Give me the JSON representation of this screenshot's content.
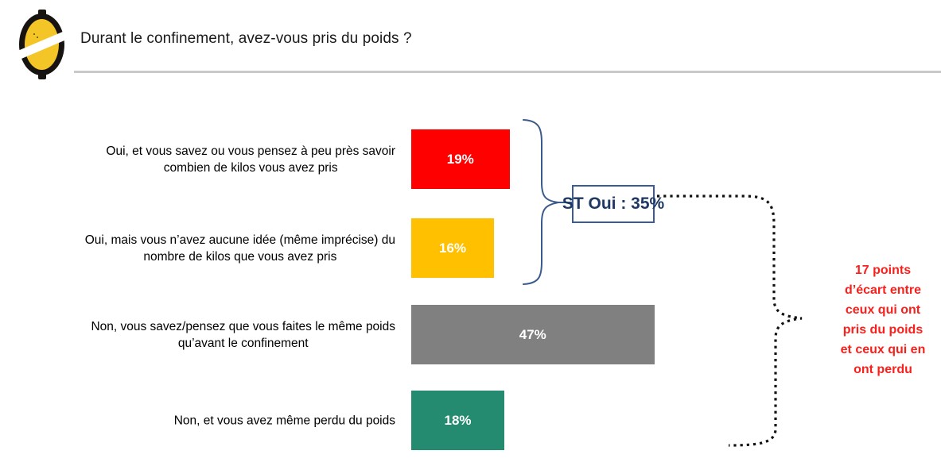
{
  "header": {
    "title": "Durant le confinement, avez-vous pris du poids ?",
    "logo": "lemon-logo"
  },
  "chart_data": {
    "type": "bar",
    "orientation": "horizontal",
    "unit": "percent",
    "title": "Durant le confinement, avez-vous pris du poids ?",
    "xlabel": "",
    "ylabel": "",
    "xlim": [
      0,
      100
    ],
    "grid": false,
    "legend": "none",
    "categories": [
      "Oui, et vous savez ou vous pensez à peu près savoir\ncombien de kilos vous avez pris",
      "Oui, mais vous n’avez aucune idée (même imprécise) du\nnombre de kilos que vous avez pris",
      "Non, vous savez/pensez que vous faites le même poids\nqu’avant le confinement",
      "Non, et vous avez même perdu du poids"
    ],
    "values": [
      19,
      16,
      47,
      18
    ],
    "value_labels": [
      "19%",
      "16%",
      "47%",
      "18%"
    ],
    "bar_colors": [
      "#FF0000",
      "#FFC000",
      "#808080",
      "#258B70"
    ],
    "annotations": {
      "subtotal_box": {
        "label": "ST Oui : 35%",
        "groups_bars": [
          0,
          1
        ],
        "border_color": "#3A5A99",
        "text_color": "#1F3864"
      },
      "gap_note": {
        "text": "17 points d’écart entre ceux qui ont pris du poids et ceux qui en ont perdu",
        "lines": [
          "17 points",
          "d’écart entre",
          "ceux qui ont",
          "pris du poids",
          "et ceux qui en",
          "ont perdu"
        ],
        "color": "#F9201C",
        "connector_style": "black-dotted",
        "connects": "subtotal of bars 1-2 with bar 4"
      }
    }
  }
}
